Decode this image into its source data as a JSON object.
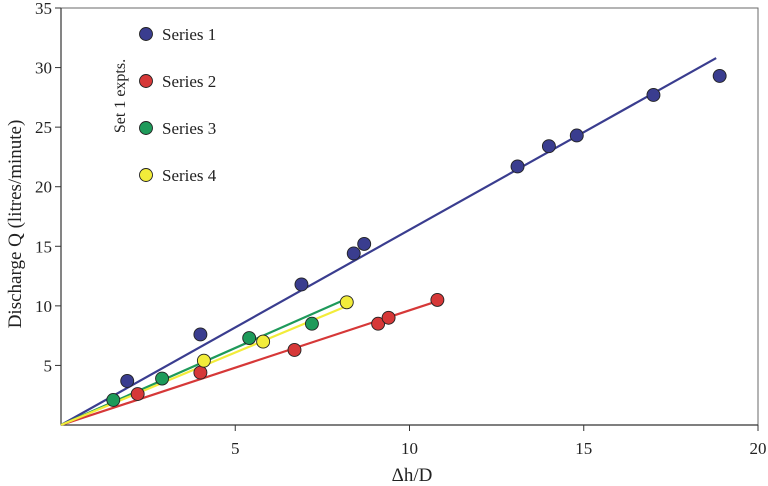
{
  "chart_data": {
    "type": "scatter",
    "xlabel": "Δh/D",
    "ylabel": "Discharge Q (litres/minute)",
    "xlim": [
      0,
      20
    ],
    "ylim": [
      0,
      35
    ],
    "xticks": [
      5,
      10,
      15,
      20
    ],
    "yticks": [
      5,
      10,
      15,
      20,
      25,
      30,
      35
    ],
    "legend_title": "Set 1 expts.",
    "legend_position": "top-left",
    "grid": false,
    "series": [
      {
        "name": "Series 1",
        "color": "#3a3d8f",
        "x": [
          1.9,
          4.0,
          6.9,
          8.4,
          8.7,
          13.1,
          14.0,
          14.8,
          17.0,
          18.9
        ],
        "y": [
          3.7,
          7.6,
          11.8,
          14.4,
          15.2,
          21.7,
          23.4,
          24.3,
          27.7,
          29.3
        ],
        "fit": [
          [
            0,
            0
          ],
          [
            18.8,
            30.8
          ]
        ]
      },
      {
        "name": "Series 2",
        "color": "#d63838",
        "x": [
          2.2,
          4.0,
          6.7,
          9.1,
          9.4,
          10.8
        ],
        "y": [
          2.6,
          4.4,
          6.3,
          8.5,
          9.0,
          10.5
        ],
        "fit": [
          [
            0,
            0
          ],
          [
            10.7,
            10.3
          ]
        ]
      },
      {
        "name": "Series 3",
        "color": "#1e9a5a",
        "x": [
          1.5,
          2.9,
          5.4,
          7.2
        ],
        "y": [
          2.1,
          3.9,
          7.3,
          8.5
        ],
        "fit": [
          [
            0,
            0
          ],
          [
            8.2,
            10.6
          ]
        ]
      },
      {
        "name": "Series 4",
        "color": "#f2ec3a",
        "x": [
          4.1,
          5.8,
          8.2
        ],
        "y": [
          5.4,
          7.0,
          10.3
        ],
        "fit": [
          [
            0,
            0
          ],
          [
            8.3,
            10.1
          ]
        ]
      }
    ]
  }
}
